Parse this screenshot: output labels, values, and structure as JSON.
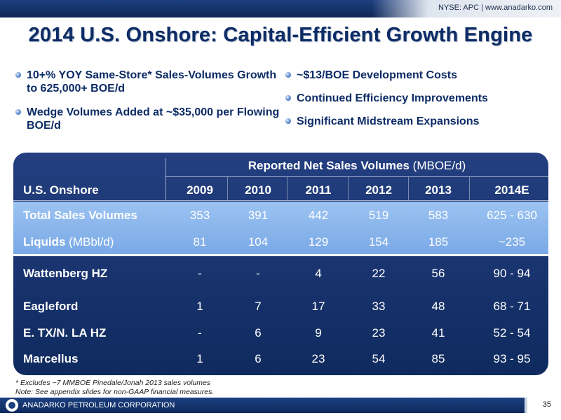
{
  "header": {
    "tag": "NYSE: APC | www.anadarko.com"
  },
  "title": "2014 U.S. Onshore: Capital-Efficient Growth Engine",
  "bullets_left": [
    "10+% YOY Same-Store* Sales-Volumes Growth to 625,000+ BOE/d",
    "Wedge Volumes Added at ~$35,000 per Flowing BOE/d"
  ],
  "bullets_right": [
    "~$13/BOE Development Costs",
    "Continued Efficiency Improvements",
    "Significant Midstream Expansions"
  ],
  "table": {
    "caption_bold": "Reported Net Sales Volumes",
    "caption_unit": " (MBOE/d)",
    "row_header": "U.S. Onshore",
    "years": [
      "2009",
      "2010",
      "2011",
      "2012",
      "2013",
      "2014E"
    ],
    "rows": [
      {
        "label": "Total Sales Volumes",
        "unit": "",
        "values": [
          "353",
          "391",
          "442",
          "519",
          "583",
          "625 - 630"
        ]
      },
      {
        "label": "Liquids",
        "unit": " (MBbl/d)",
        "values": [
          "81",
          "104",
          "129",
          "154",
          "185",
          "~235"
        ]
      },
      {
        "label": "Wattenberg HZ",
        "unit": "",
        "values": [
          "-",
          "-",
          "4",
          "22",
          "56",
          "90 - 94"
        ]
      },
      {
        "label": "Eagleford",
        "unit": "",
        "values": [
          "1",
          "7",
          "17",
          "33",
          "48",
          "68 - 71"
        ]
      },
      {
        "label": "E. TX/N. LA HZ",
        "unit": "",
        "values": [
          "-",
          "6",
          "9",
          "23",
          "41",
          "52 - 54"
        ]
      },
      {
        "label": "Marcellus",
        "unit": "",
        "values": [
          "1",
          "6",
          "23",
          "54",
          "85",
          "93 - 95"
        ]
      }
    ]
  },
  "footnotes": [
    "* Excludes ~7 MMBOE Pinedale/Jonah 2013 sales volumes",
    "Note: See appendix slides for non-GAAP financial measures."
  ],
  "footer": {
    "company": "ANADARKO PETROLEUM CORPORATION",
    "page": "35"
  }
}
